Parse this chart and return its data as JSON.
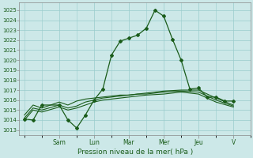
{
  "title": "",
  "xlabel": "Pression niveau de la mer( hPa )",
  "background_color": "#cce8e8",
  "grid_color": "#99cccc",
  "line_color": "#1a5c1a",
  "ylim_min": 1012.5,
  "ylim_max": 1025.8,
  "yticks": [
    1013,
    1014,
    1015,
    1016,
    1017,
    1018,
    1019,
    1020,
    1021,
    1022,
    1023,
    1024,
    1025
  ],
  "day_labels": [
    "Sam",
    "Lun",
    "Mar",
    "Mer",
    "Jeu",
    "V"
  ],
  "day_positions": [
    2.0,
    4.0,
    6.0,
    8.0,
    10.0,
    12.0
  ],
  "xlim_min": -0.3,
  "xlim_max": 13.0,
  "series1_x": [
    0,
    0.5,
    1.0,
    2.0,
    2.5,
    3.0,
    3.5,
    4.0,
    4.5,
    5.0,
    5.5,
    6.0,
    6.5,
    7.0,
    7.5,
    8.0,
    8.5,
    9.0,
    9.5,
    10.0,
    10.5,
    11.0,
    11.5,
    12.0
  ],
  "series1_y": [
    1014.1,
    1014.0,
    1015.5,
    1015.5,
    1014.0,
    1013.2,
    1014.5,
    1016.0,
    1017.1,
    1020.5,
    1021.9,
    1022.2,
    1022.5,
    1023.2,
    1025.0,
    1024.4,
    1022.1,
    1020.0,
    1017.1,
    1017.2,
    1016.3,
    1016.3,
    1015.9,
    1015.9
  ],
  "series2_x": [
    0,
    0.5,
    1.0,
    2.0,
    2.5,
    3.0,
    3.5,
    4.0,
    4.5,
    5.0,
    5.5,
    6.0,
    6.5,
    7.0,
    8.0,
    9.0,
    10.0,
    11.0,
    12.0
  ],
  "series2_y": [
    1014.5,
    1015.5,
    1015.2,
    1015.8,
    1015.5,
    1015.9,
    1016.1,
    1016.2,
    1016.3,
    1016.4,
    1016.5,
    1016.5,
    1016.6,
    1016.7,
    1016.9,
    1017.0,
    1017.0,
    1016.2,
    1015.5
  ],
  "series3_x": [
    0,
    0.5,
    1.0,
    2.0,
    2.5,
    3.0,
    3.5,
    4.0,
    4.5,
    5.0,
    5.5,
    6.0,
    6.5,
    7.0,
    8.0,
    9.0,
    10.0,
    11.0,
    12.0
  ],
  "series3_y": [
    1014.2,
    1015.2,
    1015.0,
    1015.5,
    1015.2,
    1015.4,
    1015.8,
    1016.0,
    1016.2,
    1016.3,
    1016.4,
    1016.5,
    1016.6,
    1016.6,
    1016.8,
    1016.9,
    1016.8,
    1016.0,
    1015.4
  ],
  "series4_x": [
    0,
    0.5,
    1.0,
    2.0,
    2.5,
    3.0,
    3.5,
    4.0,
    4.5,
    5.0,
    5.5,
    6.0,
    6.5,
    7.0,
    8.0,
    9.0,
    10.0,
    11.0,
    12.0
  ],
  "series4_y": [
    1014.0,
    1015.0,
    1014.8,
    1015.3,
    1015.0,
    1015.2,
    1015.5,
    1015.8,
    1016.0,
    1016.1,
    1016.2,
    1016.3,
    1016.4,
    1016.5,
    1016.6,
    1016.8,
    1016.6,
    1015.8,
    1015.3
  ]
}
